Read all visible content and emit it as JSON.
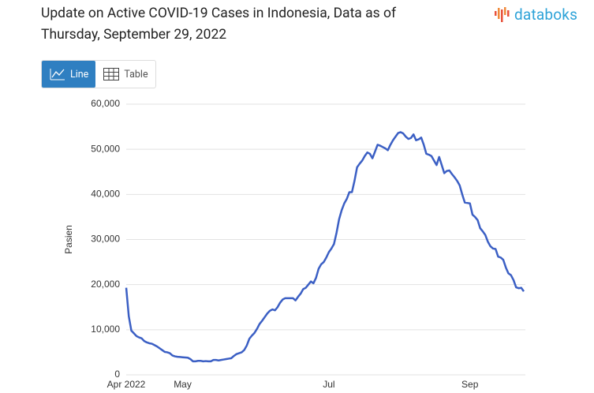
{
  "header": {
    "logo": "databoks"
  },
  "ui": {
    "buttons": [
      "Line",
      "Table"
    ]
  },
  "chart_data": {
    "type": "line",
    "title": "Update on Active COVID-19 Cases in Indonesia, Data as of Thursday, September 29, 2022",
    "y_label": "Pasien",
    "categories": [
      "Apr 2022",
      null,
      null,
      null,
      null,
      null,
      null,
      null,
      null,
      null,
      null,
      null,
      null,
      null,
      null,
      null,
      null,
      null,
      null,
      null,
      null,
      null,
      "May",
      null,
      null,
      null,
      null,
      null,
      null,
      null,
      null,
      null,
      null,
      null,
      null,
      null,
      null,
      null,
      null,
      null,
      null,
      null,
      null,
      null,
      null,
      null,
      null,
      null,
      null,
      null,
      null,
      null,
      null,
      null,
      null,
      null,
      null,
      null,
      null,
      null,
      null,
      null,
      null,
      null,
      null,
      null,
      null,
      null,
      null,
      null,
      null,
      null,
      null,
      null,
      null,
      null,
      null,
      null,
      null,
      "Jul",
      null,
      null,
      null,
      null,
      null,
      null,
      null,
      null,
      null,
      null,
      null,
      null,
      null,
      null,
      null,
      null,
      null,
      null,
      null,
      null,
      null,
      null,
      null,
      null,
      null,
      null,
      null,
      null,
      null,
      null,
      null,
      null,
      null,
      null,
      null,
      null,
      null,
      null,
      null,
      null,
      null,
      null,
      null,
      null,
      null,
      null,
      null,
      null,
      null,
      null,
      null,
      null,
      null,
      null,
      "Sep",
      null,
      null,
      null,
      null,
      null,
      null,
      null,
      null,
      null,
      null,
      null,
      null,
      null,
      null,
      null,
      null,
      null,
      null,
      null,
      null,
      null
    ],
    "series": [
      {
        "name": "Pasien",
        "color": "#3b5fc4",
        "values": [
          19300,
          13000,
          9800,
          9200,
          8600,
          8300,
          8100,
          7500,
          7200,
          7000,
          6900,
          6600,
          6300,
          5900,
          5500,
          5100,
          5000,
          4800,
          4300,
          4100,
          4000,
          3950,
          3900,
          3850,
          3800,
          3500,
          3000,
          3000,
          3100,
          3100,
          3000,
          3050,
          3000,
          3000,
          3300,
          3300,
          3200,
          3300,
          3400,
          3500,
          3600,
          3700,
          4200,
          4600,
          4800,
          5000,
          5500,
          6500,
          8000,
          8700,
          9300,
          10200,
          11300,
          12000,
          12800,
          13600,
          14200,
          14500,
          14300,
          15000,
          16000,
          16700,
          17000,
          17000,
          17000,
          17000,
          16500,
          17300,
          18000,
          19000,
          19300,
          20000,
          20700,
          20300,
          21500,
          23500,
          24500,
          25000,
          26000,
          27200,
          28000,
          29000,
          31500,
          34500,
          36500,
          38000,
          39000,
          40500,
          40500,
          43000,
          46000,
          46800,
          47500,
          48500,
          49300,
          49000,
          48000,
          49500,
          51000,
          50800,
          50500,
          50200,
          49800,
          51000,
          52000,
          52800,
          53600,
          53800,
          53500,
          52800,
          52300,
          52500,
          53300,
          52000,
          52200,
          52600,
          51000,
          49000,
          48800,
          48500,
          47500,
          46500,
          48300,
          46500,
          44700,
          45200,
          45300,
          44500,
          43800,
          43000,
          42000,
          40000,
          38200,
          38100,
          38000,
          35500,
          35000,
          34300,
          32500,
          31800,
          31000,
          29500,
          28500,
          28000,
          27900,
          26200,
          26000,
          25500,
          23800,
          22500,
          22100,
          21000,
          19400,
          19200,
          19300,
          18500
        ]
      }
    ],
    "ylim": [
      0,
      60000
    ],
    "yticks": [
      0,
      {
        "value": 10000,
        "label": "10,000"
      },
      {
        "value": 20000,
        "label": "20,000"
      },
      {
        "value": 30000,
        "label": "30,000"
      },
      {
        "value": 40000,
        "label": "40,000"
      },
      {
        "value": 50000,
        "label": "50,000"
      },
      {
        "value": 60000,
        "label": "60,000"
      }
    ],
    "grid": true
  }
}
